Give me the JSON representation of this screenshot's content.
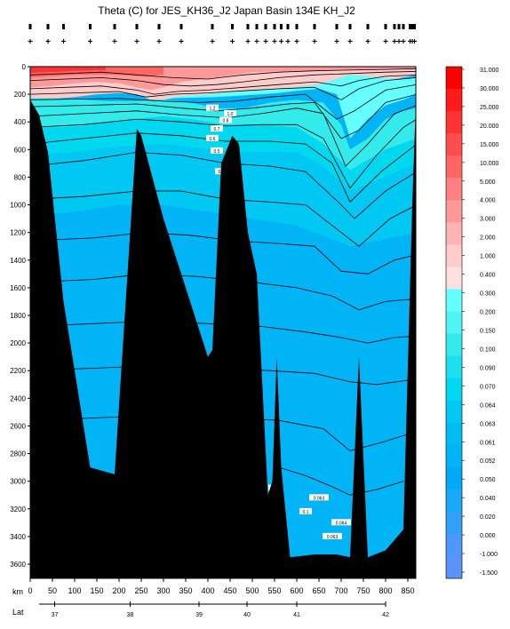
{
  "chart_data": {
    "type": "heatmap",
    "title": "Theta (C) for JES_KH36_J2 Japan Basin 134E KH_J2",
    "variable": "Theta (C)",
    "xlabel": "km",
    "x2label": "Lat",
    "ylabel": "",
    "xlim": [
      0,
      870
    ],
    "ylim": [
      3700,
      0
    ],
    "x_ticks": [
      0,
      50,
      100,
      150,
      200,
      250,
      300,
      350,
      400,
      450,
      500,
      550,
      600,
      650,
      700,
      750,
      800,
      850
    ],
    "y_ticks": [
      0,
      200,
      400,
      600,
      800,
      1000,
      1200,
      1400,
      1600,
      1800,
      2000,
      2200,
      2400,
      2600,
      2800,
      3000,
      3200,
      3400,
      3600
    ],
    "lat_ticks": [
      {
        "km": 55,
        "label": "37"
      },
      {
        "km": 225,
        "label": "38"
      },
      {
        "km": 380,
        "label": "39"
      },
      {
        "km": 488,
        "label": "40"
      },
      {
        "km": 600,
        "label": "41"
      },
      {
        "km": 800,
        "label": "42"
      }
    ],
    "stations_km": [
      0,
      40,
      75,
      135,
      190,
      240,
      290,
      340,
      410,
      455,
      490,
      510,
      530,
      550,
      565,
      580,
      600,
      640,
      690,
      720,
      760,
      800,
      820,
      830,
      840,
      855,
      860,
      865
    ],
    "colorbar": {
      "labels": [
        "31.000",
        "30.000",
        "25.000",
        "20.000",
        "15.000",
        "10.000",
        "5.000",
        "4.000",
        "3.000",
        "2.000",
        "1.000",
        "0.400",
        "0.300",
        "0.200",
        "0.150",
        "0.100",
        "0.090",
        "0.070",
        "0.064",
        "0.063",
        "0.061",
        "0.052",
        "0.050",
        "0.040",
        "0.020",
        "0.000",
        "-1.000",
        "-1.500"
      ],
      "colors": [
        "#ff0000",
        "#ff1a1a",
        "#ff3333",
        "#ff4d4d",
        "#ff6666",
        "#ff8080",
        "#ff9999",
        "#ffb3b3",
        "#ffcccc",
        "#ffe0e0",
        "#66ffff",
        "#4df5f5",
        "#33ebeb",
        "#1ae0f0",
        "#00d8f0",
        "#00c8f2",
        "#00bcf4",
        "#00b4f6",
        "#00aaf8",
        "#1aa8f8"
      ],
      "lower_colors": [
        "#33a0f8",
        "#4d98f8",
        "#5a94f8"
      ]
    },
    "contour_labels": [
      "1.2",
      "1.0",
      "0.8",
      "0.7",
      "0.6",
      "0.5",
      "0.4",
      "0.3",
      "0.2",
      "0.1",
      "0.063",
      "0.063",
      "0.064"
    ]
  }
}
